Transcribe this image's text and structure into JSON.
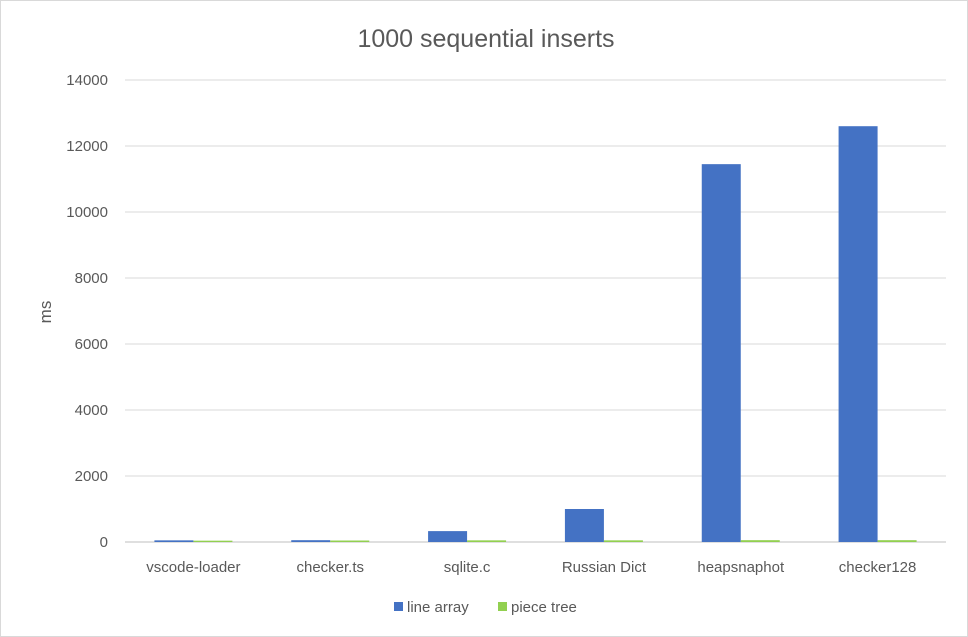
{
  "chart_data": {
    "type": "bar",
    "title": "1000 sequential inserts",
    "xlabel": "",
    "ylabel": "ms",
    "ylim": [
      0,
      14000
    ],
    "yticks": [
      0,
      2000,
      4000,
      6000,
      8000,
      10000,
      12000,
      14000
    ],
    "grid": true,
    "legend": "bottom",
    "categories": [
      "vscode-loader",
      "checker.ts",
      "sqlite.c",
      "Russian Dict",
      "heapsnaphot",
      "checker128"
    ],
    "series": [
      {
        "name": "line array",
        "color": "#4472c4",
        "values": [
          50,
          55,
          330,
          1000,
          11450,
          12600
        ]
      },
      {
        "name": "piece tree",
        "color": "#92d050",
        "values": [
          40,
          45,
          50,
          50,
          55,
          55
        ]
      }
    ]
  }
}
